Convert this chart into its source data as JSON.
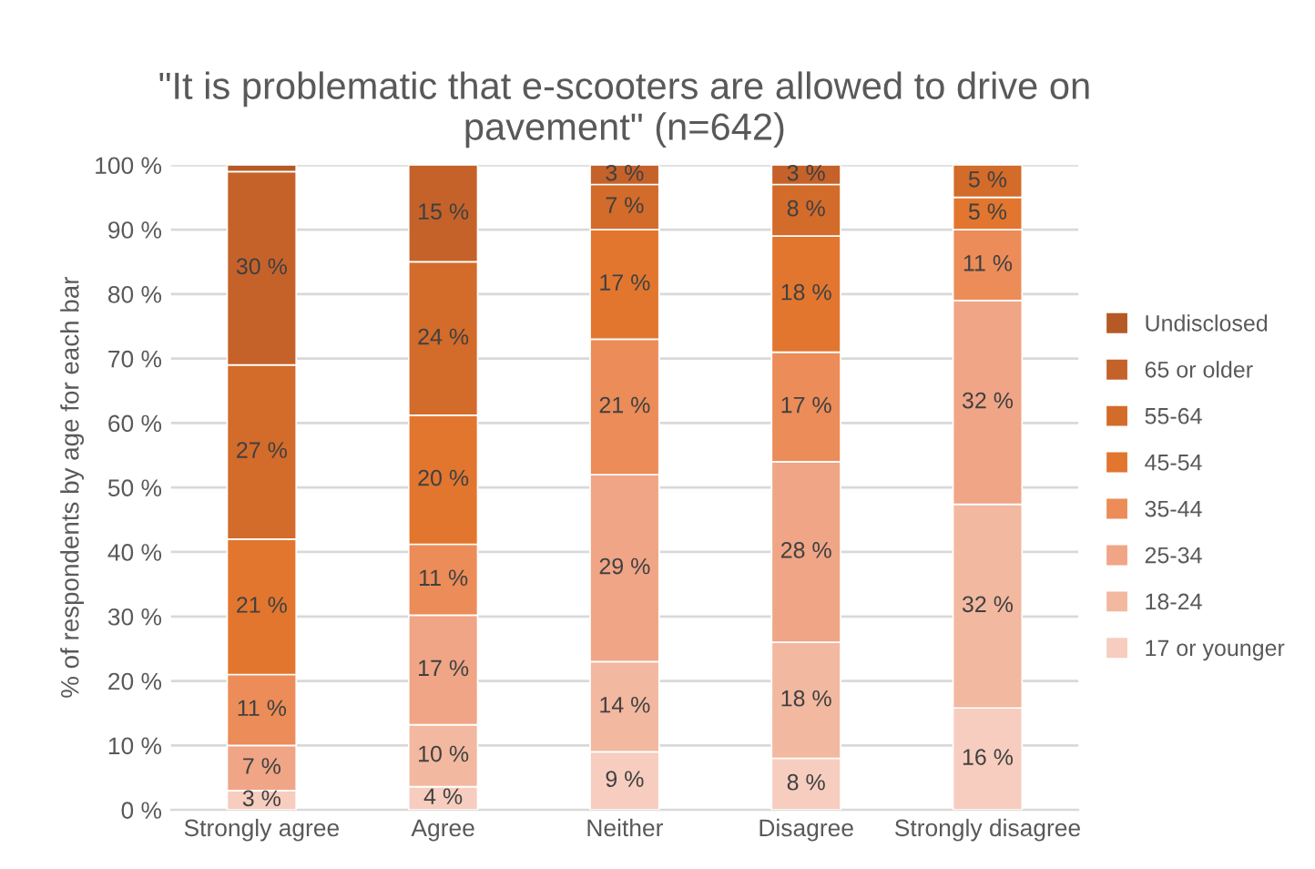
{
  "chart_data": {
    "type": "bar",
    "stacked": true,
    "title": "\"It is problematic that e-scooters are allowed to drive on\npavement\" (n=642)",
    "ylabel": "% of respondents by age for each bar",
    "categories": [
      "Strongly agree",
      "Agree",
      "Neither",
      "Disagree",
      "Strongly disagree"
    ],
    "series": [
      {
        "name": "17 or younger",
        "color": "#f6cdbe",
        "values": [
          3,
          3.6,
          9,
          8,
          15.8
        ],
        "value_labels": [
          "3 %",
          "4 %",
          "9 %",
          "8 %",
          "16 %"
        ]
      },
      {
        "name": "18-24",
        "color": "#f2b8a0",
        "values": [
          null,
          9.6,
          14,
          18,
          31.6
        ],
        "value_labels": [
          null,
          "10 %",
          "14 %",
          "18 %",
          "32 %"
        ]
      },
      {
        "name": "25-34",
        "color": "#efa586",
        "values": [
          7,
          17,
          29,
          28,
          31.6
        ],
        "value_labels": [
          "7 %",
          "17 %",
          "29 %",
          "28 %",
          "32 %"
        ]
      },
      {
        "name": "35-44",
        "color": "#ec8c58",
        "values": [
          11,
          11,
          21,
          17,
          11
        ],
        "value_labels": [
          "11 %",
          "11 %",
          "21 %",
          "17 %",
          "11 %"
        ]
      },
      {
        "name": "45-54",
        "color": "#e2762f",
        "values": [
          21,
          20,
          17,
          18,
          5
        ],
        "value_labels": [
          "21 %",
          "20 %",
          "17 %",
          "18 %",
          "5 %"
        ]
      },
      {
        "name": "55-64",
        "color": "#d36b2a",
        "values": [
          27,
          23.8,
          7,
          8,
          5
        ],
        "value_labels": [
          "27 %",
          "24 %",
          "7 %",
          "8 %",
          "5 %"
        ]
      },
      {
        "name": "65 or older",
        "color": "#c5622a",
        "values": [
          30,
          15,
          3,
          3,
          null
        ],
        "value_labels": [
          "30 %",
          "15 %",
          "3 %",
          "3 %",
          null
        ]
      },
      {
        "name": "Undisclosed",
        "color": "#b55a24",
        "values": [
          1,
          null,
          null,
          null,
          null
        ],
        "value_labels": [
          null,
          null,
          null,
          null,
          null
        ]
      }
    ],
    "ylim": [
      0,
      100
    ],
    "yticks": [
      {
        "value": 0,
        "label": "0 %"
      },
      {
        "value": 10,
        "label": "10 %"
      },
      {
        "value": 20,
        "label": "20 %"
      },
      {
        "value": 30,
        "label": "30 %"
      },
      {
        "value": 40,
        "label": "40 %"
      },
      {
        "value": 50,
        "label": "50 %"
      },
      {
        "value": 60,
        "label": "60 %"
      },
      {
        "value": 70,
        "label": "70 %"
      },
      {
        "value": 80,
        "label": "80 %"
      },
      {
        "value": 90,
        "label": "90 %"
      },
      {
        "value": 100,
        "label": "100 %"
      }
    ],
    "grid": "y",
    "legend": "right"
  }
}
